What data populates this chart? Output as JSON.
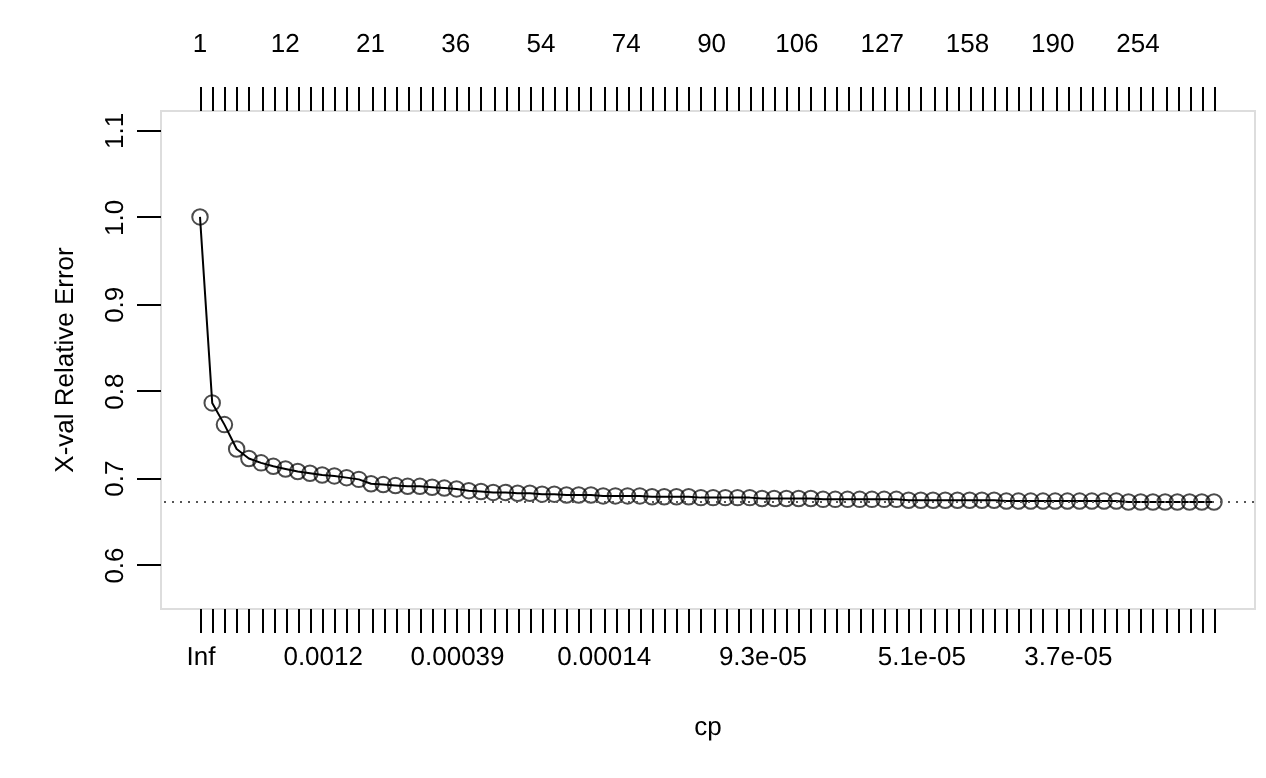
{
  "chart_data": {
    "type": "line",
    "xlabel": "cp",
    "ylabel": "X-val Relative Error",
    "categories": [
      "Inf",
      null,
      null,
      null,
      null,
      null,
      null,
      null,
      null,
      null,
      "0.0012",
      null,
      null,
      null,
      null,
      null,
      null,
      null,
      null,
      null,
      null,
      "0.00039",
      null,
      null,
      null,
      null,
      null,
      null,
      null,
      null,
      null,
      null,
      null,
      "0.00014",
      null,
      null,
      null,
      null,
      null,
      null,
      null,
      null,
      null,
      null,
      null,
      null,
      "9.3e-05",
      null,
      null,
      null,
      null,
      null,
      null,
      null,
      null,
      null,
      null,
      null,
      null,
      "5.1e-05",
      null,
      null,
      null,
      null,
      null,
      null,
      null,
      null,
      null,
      null,
      null,
      "3.7e-05",
      null,
      null,
      null,
      null,
      null,
      null,
      null,
      null,
      null,
      null,
      null,
      null
    ],
    "series": [
      {
        "color": "#000000",
        "values": [
          1.0,
          0.786,
          0.761,
          0.733,
          0.722,
          0.717,
          0.713,
          0.71,
          0.707,
          0.705,
          0.703,
          0.702,
          0.7,
          0.698,
          0.693,
          0.692,
          0.691,
          0.69,
          0.69,
          0.689,
          0.688,
          0.687,
          0.685,
          0.684,
          0.683,
          0.683,
          0.682,
          0.682,
          0.681,
          0.681,
          0.68,
          0.68,
          0.68,
          0.679,
          0.679,
          0.679,
          0.679,
          0.678,
          0.678,
          0.678,
          0.678,
          0.677,
          0.677,
          0.677,
          0.677,
          0.677,
          0.676,
          0.676,
          0.676,
          0.676,
          0.676,
          0.675,
          0.675,
          0.675,
          0.675,
          0.675,
          0.675,
          0.675,
          0.674,
          0.674,
          0.674,
          0.674,
          0.674,
          0.674,
          0.674,
          0.674,
          0.673,
          0.673,
          0.673,
          0.673,
          0.673,
          0.673,
          0.673,
          0.673,
          0.673,
          0.673,
          0.672,
          0.672,
          0.672,
          0.672,
          0.672,
          0.672,
          0.672,
          0.672
        ]
      }
    ],
    "marker": "circle",
    "line_style": "solid",
    "ylim": [
      0.55,
      1.123
    ],
    "yticks": [
      0.6,
      0.7,
      0.8,
      0.9,
      {
        "value": 1.0,
        "label": "1.0"
      },
      1.1
    ],
    "annotations": [
      "1",
      "12",
      "21",
      "36",
      "54",
      "74",
      "90",
      "106",
      "127",
      "158",
      "190",
      "254"
    ],
    "ref_lines": [
      {
        "axis": "y",
        "value": 0.672,
        "line_style": "dotted",
        "color": "#555555"
      }
    ]
  }
}
